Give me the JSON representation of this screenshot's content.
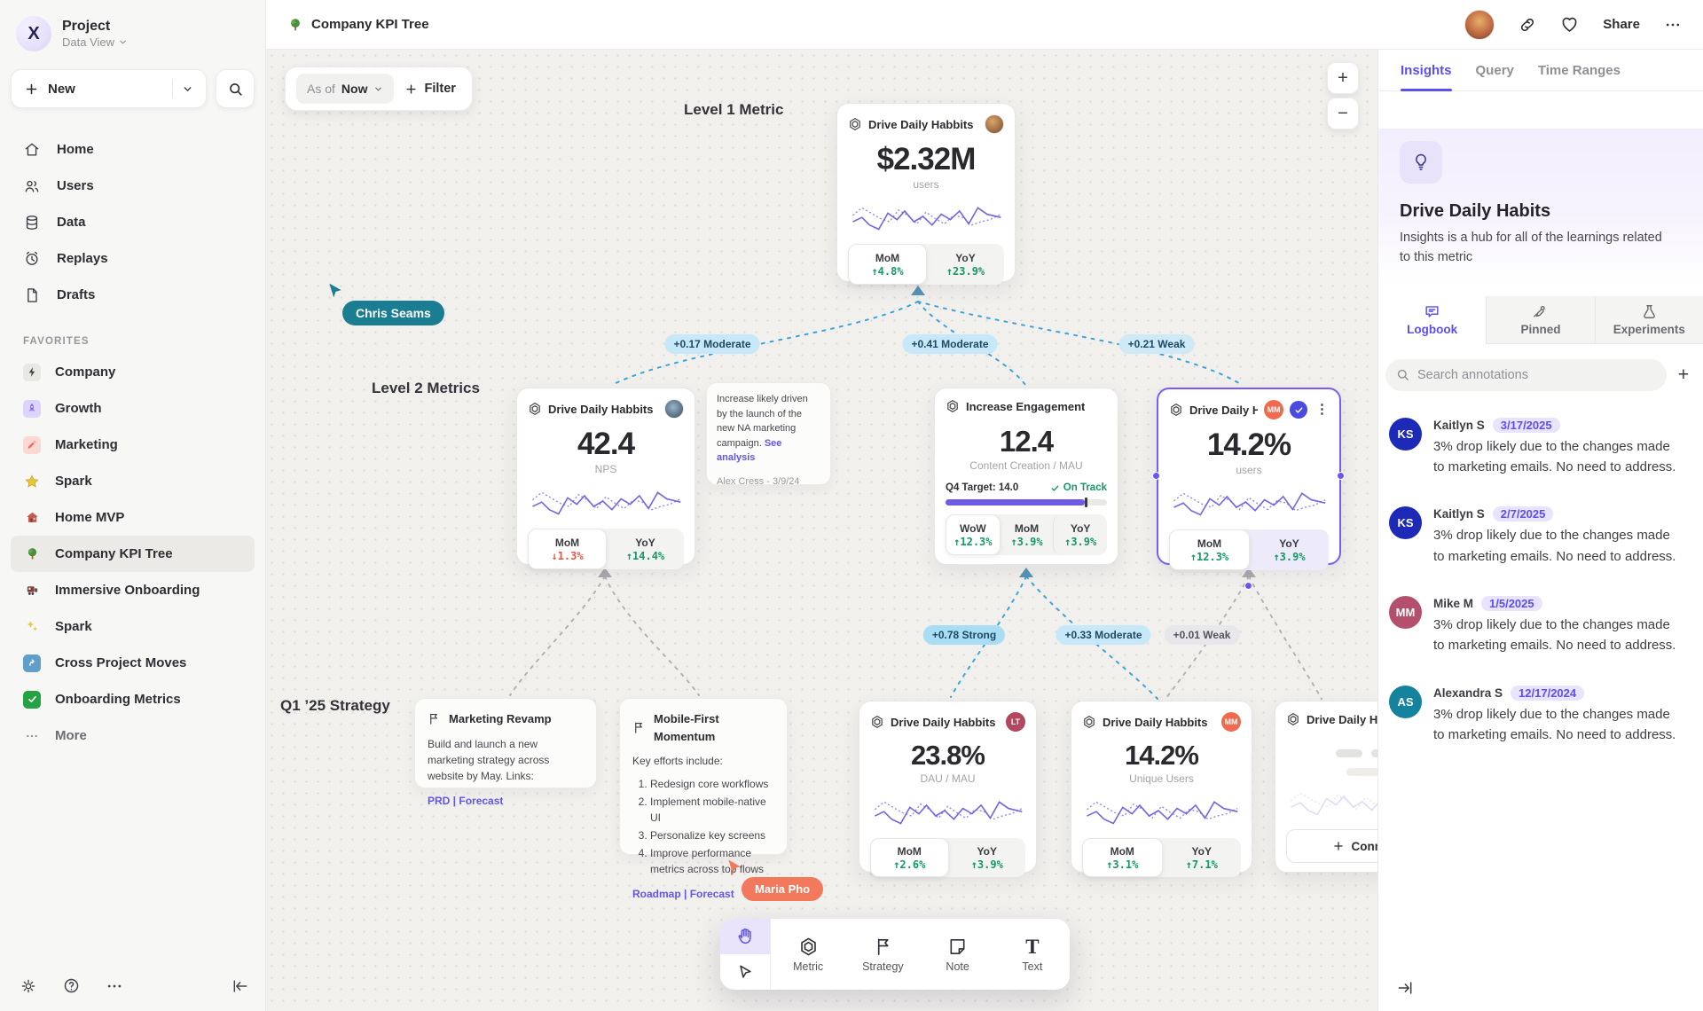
{
  "colors": {
    "accent": "#6156e8",
    "selected_border": "#7a5cf0",
    "green": "#149a62",
    "red": "#e05b47",
    "edge_line_blue": "#3aa5dc",
    "edge_line_gray": "#b3b1b6",
    "chip_moderate": "#c7e8f8",
    "chip_strong": "#a9ddf4",
    "chip_weak_gray": "#e8e7ec",
    "cursor_teal": "#1b7d92",
    "cursor_coral": "#f2795b",
    "annotation_date": "#5b4ff0"
  },
  "sidebar": {
    "project": {
      "name": "Project",
      "view": "Data View"
    },
    "new_label": "New",
    "nav": [
      {
        "label": "Home"
      },
      {
        "label": "Users"
      },
      {
        "label": "Data"
      },
      {
        "label": "Replays"
      },
      {
        "label": "Drafts"
      }
    ],
    "favorites_label": "FAVORITES",
    "favorites": [
      {
        "label": "Company"
      },
      {
        "label": "Growth"
      },
      {
        "label": "Marketing"
      },
      {
        "label": "Spark"
      },
      {
        "label": "Home MVP"
      },
      {
        "label": "Company KPI Tree"
      },
      {
        "label": "Immersive Onboarding"
      },
      {
        "label": "Spark"
      },
      {
        "label": "Cross Project Moves"
      },
      {
        "label": "Onboarding Metrics"
      }
    ],
    "more_label": "More"
  },
  "topbar": {
    "title": "Company KPI Tree",
    "share_label": "Share"
  },
  "canvas": {
    "asof_prefix": "As of",
    "asof_value": "Now",
    "filter_label": "Filter",
    "labels": {
      "level1": "Level 1 Metric",
      "level2": "Level 2 Metrics",
      "strategy": "Q1 ’25 Strategy"
    },
    "cursors": {
      "c1": "Chris Seams",
      "c2": "Maria Pho"
    },
    "edges": {
      "e1": "+0.17 Moderate",
      "e2": "+0.41 Moderate",
      "e3": "+0.21 Weak",
      "e4": "+0.78 Strong",
      "e5": "+0.33 Moderate",
      "e6": "+0.01 Weak"
    },
    "cards": {
      "l1": {
        "title": "Drive Daily Habbits",
        "value": "$2.32M",
        "unit": "users",
        "stats": [
          {
            "label": "MoM",
            "value": "↑4.8%"
          },
          {
            "label": "YoY",
            "value": "↑23.9%"
          }
        ]
      },
      "l2a": {
        "title": "Drive Daily Habbits",
        "value": "42.4",
        "unit": "NPS",
        "stats": [
          {
            "label": "MoM",
            "value": "↓1.3%"
          },
          {
            "label": "YoY",
            "value": "↑14.4%"
          }
        ]
      },
      "l2b": {
        "title": "Increase Engagement",
        "value": "12.4",
        "unit": "Content Creation / MAU",
        "target": "Q4 Target: 14.0",
        "status": "On Track",
        "stats": [
          {
            "label": "WoW",
            "value": "↑12.3%"
          },
          {
            "label": "MoM",
            "value": "↑3.9%"
          },
          {
            "label": "YoY",
            "value": "↑3.9%"
          }
        ]
      },
      "l2c": {
        "title": "Drive Daily Habb..",
        "badge": "MM",
        "value": "14.2%",
        "unit": "users",
        "stats": [
          {
            "label": "MoM",
            "value": "↑12.3%"
          },
          {
            "label": "YoY",
            "value": "↑3.9%"
          }
        ]
      },
      "b1": {
        "title": "Drive Daily Habbits",
        "badge": "LT",
        "value": "23.8%",
        "unit": "DAU / MAU",
        "stats": [
          {
            "label": "MoM",
            "value": "↑2.6%"
          },
          {
            "label": "YoY",
            "value": "↑3.9%"
          }
        ]
      },
      "b2": {
        "title": "Drive Daily Habbits",
        "badge": "MM",
        "value": "14.2%",
        "unit": "Unique Users",
        "stats": [
          {
            "label": "MoM",
            "value": "↑3.1%"
          },
          {
            "label": "YoY",
            "value": "↑7.1%"
          }
        ]
      },
      "b3": {
        "title": "Drive Daily Habbits",
        "connect_label": "Connect"
      }
    },
    "notes": {
      "analysis": {
        "body": "Increase likely driven by the launch of the new NA marketing campaign.",
        "link": "See analysis",
        "author": "Alex Cress - 3/9/24"
      },
      "s1": {
        "title": "Marketing Revamp",
        "body": "Build and launch a new marketing strategy across website by May. Links:",
        "links": "PRD | Forecast"
      },
      "s2": {
        "title": "Mobile-First Momentum",
        "intro": "Key efforts include:",
        "items": [
          "Redesign core workflows",
          "Implement mobile-native UI",
          "Personalize key screens",
          "Improve performance metrics across top flows"
        ],
        "links": "Roadmap | Forecast"
      }
    },
    "toolbar": {
      "items": [
        {
          "label": "Metric"
        },
        {
          "label": "Strategy"
        },
        {
          "label": "Note"
        },
        {
          "label": "Text"
        }
      ]
    }
  },
  "panel": {
    "tabs": [
      {
        "label": "Insights"
      },
      {
        "label": "Query"
      },
      {
        "label": "Time Ranges"
      }
    ],
    "title": "Drive Daily Habits",
    "description": "Insights is a hub for all of the learnings related to this metric",
    "subtabs": [
      {
        "label": "Logbook"
      },
      {
        "label": "Pinned"
      },
      {
        "label": "Experiments"
      }
    ],
    "search_placeholder": "Search annotations",
    "annotations": [
      {
        "initials": "KS",
        "name": "Kaitlyn S",
        "date": "3/17/2025",
        "body": "3% drop likely due to the changes made to marketing emails. No need to address."
      },
      {
        "initials": "KS",
        "name": "Kaitlyn S",
        "date": "2/7/2025",
        "body": "3% drop likely due to the changes made to marketing emails. No need to address."
      },
      {
        "initials": "MM",
        "name": "Mike M",
        "date": "1/5/2025",
        "body": "3% drop likely due to the changes made to marketing emails. No need to address."
      },
      {
        "initials": "AS",
        "name": "Alexandra S",
        "date": "12/17/2024",
        "body": "3% drop likely due to the changes made to marketing emails. No need to address."
      }
    ]
  }
}
